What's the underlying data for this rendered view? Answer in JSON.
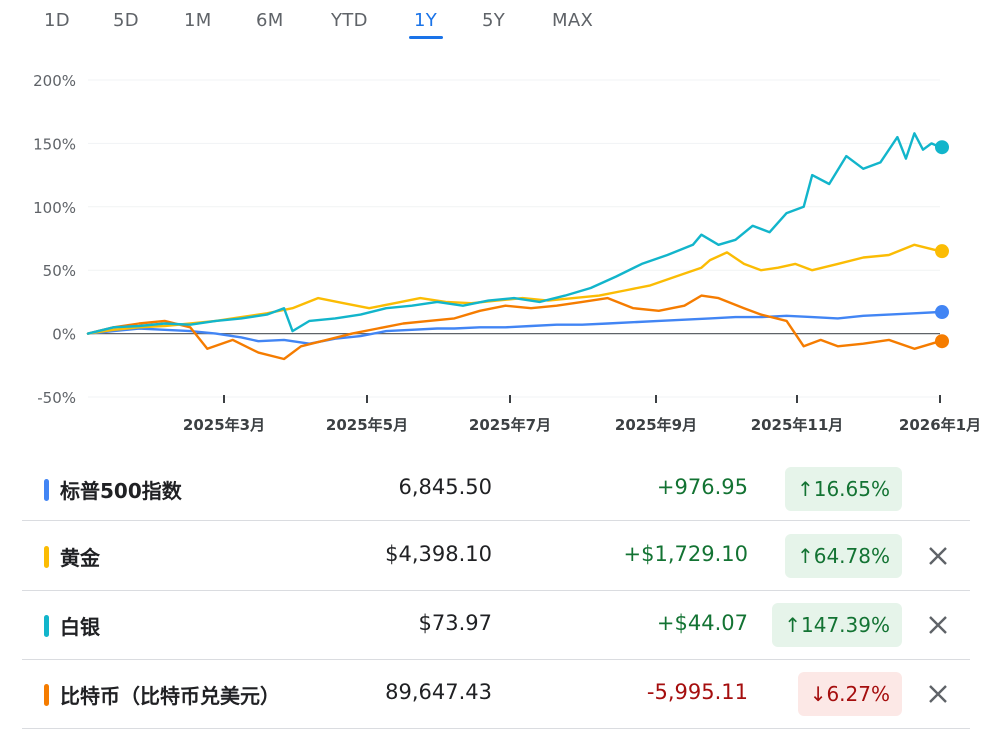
{
  "tabs": [
    {
      "label": "1D",
      "active": false
    },
    {
      "label": "5D",
      "active": false
    },
    {
      "label": "1M",
      "active": false
    },
    {
      "label": "6M",
      "active": false
    },
    {
      "label": "YTD",
      "active": false
    },
    {
      "label": "1Y",
      "active": true
    },
    {
      "label": "5Y",
      "active": false
    },
    {
      "label": "MAX",
      "active": false
    }
  ],
  "chart_data": {
    "type": "line",
    "yticks": [
      "200%",
      "150%",
      "100%",
      "50%",
      "0%",
      "-50%"
    ],
    "ylim": [
      -50,
      200
    ],
    "xticks": [
      "2025年3月",
      "2025年5月",
      "2025年7月",
      "2025年9月",
      "2025年11月",
      "2026年1月"
    ],
    "grid": true,
    "series": [
      {
        "name": "标普500指数",
        "color": "#4285f4",
        "x": [
          0,
          3,
          6,
          9,
          12,
          15,
          18,
          20,
          23,
          26,
          29,
          32,
          35,
          38,
          41,
          43,
          46,
          49,
          52,
          55,
          58,
          61,
          64,
          67,
          70,
          73,
          76,
          79,
          82,
          85,
          88,
          91,
          94,
          97,
          100
        ],
        "y": [
          0,
          2,
          4,
          3,
          2,
          0,
          -3,
          -6,
          -5,
          -8,
          -4,
          -2,
          2,
          3,
          4,
          4,
          5,
          5,
          6,
          7,
          7,
          8,
          9,
          10,
          11,
          12,
          13,
          13,
          14,
          13,
          12,
          14,
          15,
          16,
          17
        ]
      },
      {
        "name": "黄金",
        "color": "#fbbc04",
        "x": [
          0,
          3,
          6,
          9,
          12,
          15,
          18,
          21,
          24,
          27,
          30,
          33,
          36,
          39,
          42,
          45,
          48,
          51,
          54,
          57,
          60,
          63,
          66,
          69,
          72,
          73,
          75,
          77,
          79,
          81,
          83,
          85,
          88,
          91,
          94,
          97,
          100
        ],
        "y": [
          0,
          3,
          5,
          6,
          8,
          10,
          13,
          16,
          20,
          28,
          24,
          20,
          24,
          28,
          25,
          24,
          26,
          28,
          26,
          28,
          30,
          34,
          38,
          45,
          52,
          58,
          64,
          55,
          50,
          52,
          55,
          50,
          55,
          60,
          62,
          70,
          65
        ]
      },
      {
        "name": "白银",
        "color": "#12b5cb",
        "x": [
          0,
          3,
          6,
          9,
          12,
          15,
          18,
          21,
          23,
          24,
          26,
          29,
          32,
          35,
          38,
          41,
          44,
          47,
          50,
          53,
          56,
          59,
          62,
          65,
          68,
          71,
          72,
          74,
          76,
          78,
          80,
          82,
          84,
          85,
          87,
          89,
          91,
          93,
          95,
          96,
          97,
          98,
          99,
          100
        ],
        "y": [
          0,
          5,
          6,
          8,
          7,
          10,
          12,
          15,
          20,
          2,
          10,
          12,
          15,
          20,
          22,
          25,
          22,
          26,
          28,
          25,
          30,
          36,
          45,
          55,
          62,
          70,
          78,
          70,
          74,
          85,
          80,
          95,
          100,
          125,
          118,
          140,
          130,
          135,
          155,
          138,
          158,
          145,
          150,
          147
        ]
      },
      {
        "name": "比特币（比特币兑美元）",
        "color": "#f57c00",
        "x": [
          0,
          3,
          6,
          9,
          12,
          14,
          17,
          20,
          23,
          25,
          28,
          31,
          34,
          37,
          40,
          43,
          46,
          49,
          52,
          55,
          58,
          61,
          64,
          67,
          70,
          72,
          74,
          77,
          79,
          82,
          84,
          86,
          88,
          91,
          94,
          97,
          100
        ],
        "y": [
          0,
          5,
          8,
          10,
          5,
          -12,
          -5,
          -15,
          -20,
          -10,
          -5,
          0,
          4,
          8,
          10,
          12,
          18,
          22,
          20,
          22,
          25,
          28,
          20,
          18,
          22,
          30,
          28,
          20,
          15,
          10,
          -10,
          -5,
          -10,
          -8,
          -5,
          -12,
          -6
        ]
      }
    ]
  },
  "assets": [
    {
      "name": "标普500指数",
      "color": "#4285f4",
      "price": "6,845.50",
      "change": "+976.95",
      "pct": "↑16.65%",
      "dir": "up",
      "removable": false
    },
    {
      "name": "黄金",
      "color": "#fbbc04",
      "price": "$4,398.10",
      "change": "+$1,729.10",
      "pct": "↑64.78%",
      "dir": "up",
      "removable": true
    },
    {
      "name": "白银",
      "color": "#12b5cb",
      "price": "$73.97",
      "change": "+$44.07",
      "pct": "↑147.39%",
      "dir": "up",
      "removable": true
    },
    {
      "name": "比特币（比特币兑美元）",
      "color": "#f57c00",
      "price": "89,647.43",
      "change": "-5,995.11",
      "pct": "↓6.27%",
      "dir": "down",
      "removable": true
    }
  ]
}
